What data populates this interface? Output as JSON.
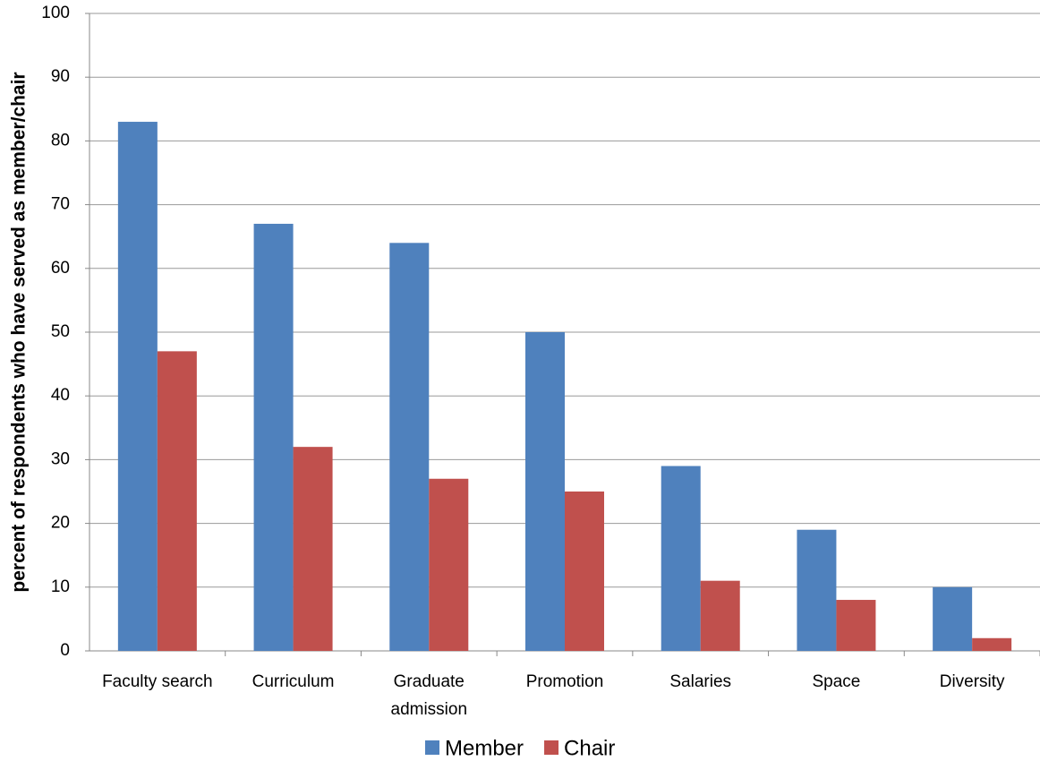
{
  "chart_data": {
    "type": "bar",
    "y_label": "percent of respondents who have served as member/chair",
    "categories": [
      "Faculty search",
      "Curriculum",
      "Graduate admission",
      "Promotion",
      "Salaries",
      "Space",
      "Diversity"
    ],
    "series": [
      {
        "name": "Member",
        "color": "#4f81bd",
        "values": [
          83,
          67,
          64,
          50,
          29,
          19,
          10
        ]
      },
      {
        "name": "Chair",
        "color": "#c0504d",
        "values": [
          47,
          32,
          27,
          25,
          11,
          8,
          2
        ]
      }
    ],
    "ylim": [
      0,
      100
    ],
    "yticks": [
      0,
      10,
      20,
      30,
      40,
      50,
      60,
      70,
      80,
      90,
      100
    ],
    "grid": true,
    "legend": "bottom"
  }
}
